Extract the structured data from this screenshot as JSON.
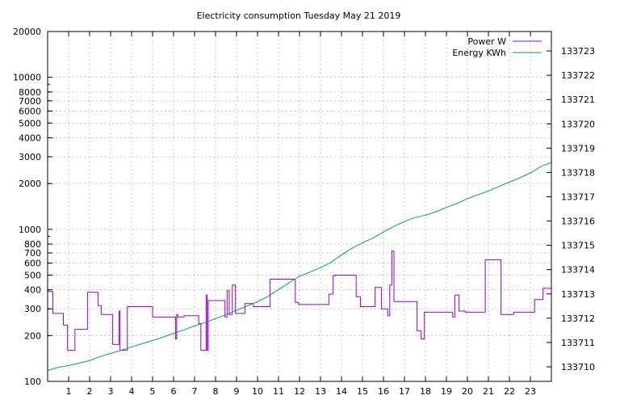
{
  "chart_data": {
    "type": "line",
    "title": "Electricity consumption Tuesday May 21 2019",
    "x_ticks": [
      "1",
      "2",
      "3",
      "4",
      "5",
      "6",
      "7",
      "8",
      "9",
      "10",
      "11",
      "12",
      "13",
      "14",
      "15",
      "16",
      "17",
      "18",
      "19",
      "20",
      "21",
      "22",
      "23"
    ],
    "xlim": [
      0,
      24
    ],
    "y_left": {
      "scale": "log",
      "ylim": [
        100,
        20000
      ],
      "ticks": [
        100,
        200,
        300,
        400,
        500,
        600,
        700,
        800,
        1000,
        2000,
        3000,
        4000,
        5000,
        6000,
        7000,
        8000,
        10000,
        20000
      ]
    },
    "y_right": {
      "ylim": [
        133709.4,
        133723.8
      ],
      "ticks": [
        133710,
        133711,
        133712,
        133713,
        133714,
        133715,
        133716,
        133717,
        133718,
        133719,
        133720,
        133721,
        133722,
        133723
      ]
    },
    "grid": true,
    "legend_position": "top-right",
    "series": [
      {
        "name": "Power W",
        "color": "#9400d3",
        "axis": "left",
        "step": true,
        "x": [
          0,
          0.25,
          0.75,
          0.95,
          1.3,
          1.9,
          2.4,
          2.55,
          3.1,
          3.4,
          3.45,
          3.5,
          3.55,
          3.8,
          4.5,
          5.0,
          6.1,
          6.15,
          6.2,
          6.5,
          6.6,
          7.2,
          7.3,
          7.55,
          7.6,
          7.65,
          7.75,
          8.45,
          8.55,
          8.65,
          8.8,
          8.95,
          9.4,
          9.6,
          9.8,
          10.6,
          11.8,
          11.95,
          12.05,
          13.0,
          13.4,
          13.6,
          13.7,
          13.9,
          14.7,
          14.9,
          15.6,
          15.9,
          16.2,
          16.3,
          16.4,
          16.5,
          16.6,
          17.0,
          17.6,
          17.8,
          17.95,
          18.1,
          19.3,
          19.4,
          19.6,
          19.9,
          20.8,
          20.85,
          21.6,
          22.2,
          23.2,
          23.6,
          24
        ],
        "y": [
          390,
          280,
          235,
          160,
          220,
          385,
          315,
          275,
          175,
          290,
          160,
          160,
          160,
          310,
          310,
          265,
          190,
          275,
          265,
          270,
          270,
          240,
          160,
          370,
          160,
          340,
          340,
          265,
          395,
          275,
          430,
          280,
          325,
          325,
          310,
          470,
          330,
          320,
          320,
          320,
          375,
          495,
          500,
          500,
          360,
          310,
          415,
          300,
          270,
          430,
          720,
          335,
          335,
          335,
          215,
          190,
          285,
          285,
          265,
          370,
          290,
          285,
          285,
          630,
          275,
          285,
          345,
          410,
          325
        ]
      },
      {
        "name": "Energy KWh",
        "color": "#009e73",
        "axis": "right",
        "step": false,
        "x": [
          0,
          0.5,
          1,
          1.5,
          2,
          2.5,
          3,
          3.5,
          4,
          4.5,
          5,
          5.5,
          6,
          6.5,
          7,
          7.5,
          8,
          8.5,
          9,
          9.5,
          10,
          10.5,
          11,
          11.5,
          12,
          12.5,
          13,
          13.5,
          14,
          14.5,
          15,
          15.5,
          16,
          16.5,
          17,
          17.5,
          18,
          18.5,
          19,
          19.5,
          20,
          20.5,
          21,
          21.5,
          22,
          22.5,
          23,
          23.5,
          24
        ],
        "y": [
          133709.85,
          133709.98,
          133710.05,
          133710.15,
          133710.25,
          133710.42,
          133710.55,
          133710.68,
          133710.82,
          133710.95,
          133711.08,
          133711.22,
          133711.38,
          133711.52,
          133711.68,
          133711.82,
          133711.98,
          133712.15,
          133712.32,
          133712.5,
          133712.68,
          133712.9,
          133713.18,
          133713.46,
          133713.72,
          133713.9,
          133714.08,
          133714.3,
          133714.6,
          133714.88,
          133715.1,
          133715.3,
          133715.55,
          133715.78,
          133715.98,
          133716.14,
          133716.24,
          133716.38,
          133716.56,
          133716.72,
          133716.92,
          133717.08,
          133717.24,
          133717.42,
          133717.6,
          133717.78,
          133717.98,
          133718.24,
          133718.42
        ]
      }
    ]
  }
}
